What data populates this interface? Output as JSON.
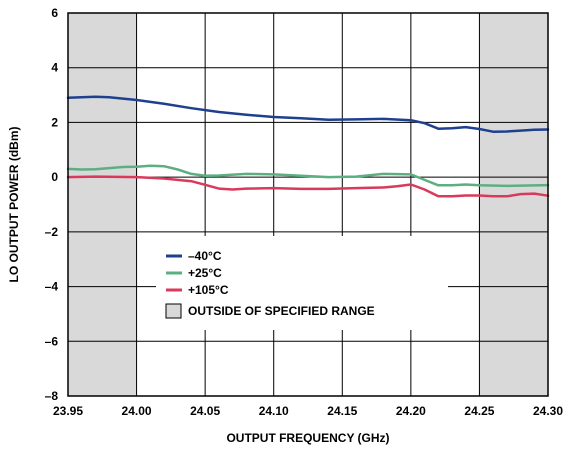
{
  "chart_data": {
    "type": "line",
    "xlabel": "OUTPUT FREQUENCY (GHz)",
    "ylabel": "LO OUTPUT POWER (dBm)",
    "xlim": [
      23.95,
      24.3
    ],
    "ylim": [
      -8,
      6
    ],
    "x_ticks": [
      "23.95",
      "24.00",
      "24.05",
      "24.10",
      "24.15",
      "24.20",
      "24.25",
      "24.30"
    ],
    "x_tick_values": [
      23.95,
      24.0,
      24.05,
      24.1,
      24.15,
      24.2,
      24.25,
      24.3
    ],
    "y_ticks": [
      "6",
      "4",
      "2",
      "0",
      "–2",
      "–4",
      "–6",
      "–8"
    ],
    "y_tick_values": [
      6,
      4,
      2,
      0,
      -2,
      -4,
      -6,
      -8
    ],
    "grid": true,
    "shaded_regions": [
      {
        "x_start": 23.95,
        "x_end": 24.0,
        "color": "#d9d9d9"
      },
      {
        "x_start": 24.25,
        "x_end": 24.3,
        "color": "#d9d9d9"
      }
    ],
    "series": [
      {
        "name": "–40°C",
        "color": "#1f3f8f",
        "x": [
          23.95,
          23.96,
          23.97,
          23.98,
          23.99,
          24.0,
          24.02,
          24.04,
          24.06,
          24.08,
          24.1,
          24.12,
          24.14,
          24.16,
          24.18,
          24.2,
          24.21,
          24.22,
          24.23,
          24.24,
          24.25,
          24.26,
          24.27,
          24.28,
          24.29,
          24.3
        ],
        "y": [
          2.9,
          2.92,
          2.94,
          2.92,
          2.87,
          2.82,
          2.68,
          2.52,
          2.38,
          2.28,
          2.2,
          2.15,
          2.1,
          2.11,
          2.13,
          2.08,
          1.97,
          1.77,
          1.79,
          1.83,
          1.76,
          1.66,
          1.67,
          1.7,
          1.73,
          1.74
        ]
      },
      {
        "name": "+25°C",
        "color": "#5daf82",
        "x": [
          23.95,
          23.96,
          23.97,
          23.98,
          23.99,
          24.0,
          24.01,
          24.02,
          24.03,
          24.04,
          24.05,
          24.06,
          24.08,
          24.1,
          24.12,
          24.14,
          24.16,
          24.18,
          24.2,
          24.21,
          24.22,
          24.23,
          24.24,
          24.25,
          24.27,
          24.3
        ],
        "y": [
          0.3,
          0.28,
          0.29,
          0.33,
          0.37,
          0.38,
          0.42,
          0.4,
          0.28,
          0.12,
          0.05,
          0.06,
          0.12,
          0.1,
          0.05,
          0.0,
          0.02,
          0.12,
          0.1,
          -0.1,
          -0.3,
          -0.3,
          -0.27,
          -0.3,
          -0.32,
          -0.29
        ]
      },
      {
        "name": "+105°C",
        "color": "#d93a5c",
        "x": [
          23.95,
          23.97,
          24.0,
          24.02,
          24.04,
          24.05,
          24.06,
          24.07,
          24.08,
          24.1,
          24.12,
          24.14,
          24.16,
          24.18,
          24.19,
          24.2,
          24.21,
          24.22,
          24.23,
          24.24,
          24.25,
          24.26,
          24.27,
          24.28,
          24.29,
          24.3
        ],
        "y": [
          0.0,
          0.02,
          0.0,
          -0.05,
          -0.15,
          -0.28,
          -0.42,
          -0.45,
          -0.42,
          -0.4,
          -0.43,
          -0.43,
          -0.4,
          -0.38,
          -0.33,
          -0.27,
          -0.45,
          -0.7,
          -0.7,
          -0.67,
          -0.67,
          -0.7,
          -0.7,
          -0.62,
          -0.6,
          -0.68
        ]
      }
    ],
    "legend": {
      "placement": "lower-left",
      "items": [
        {
          "label": "–40°C",
          "color": "#1f3f8f",
          "kind": "line"
        },
        {
          "label": "+25°C",
          "color": "#5daf82",
          "kind": "line"
        },
        {
          "label": "+105°C",
          "color": "#d93a5c",
          "kind": "line"
        },
        {
          "label": "OUTSIDE OF SPECIFIED RANGE",
          "color": "#d9d9d9",
          "kind": "box"
        }
      ]
    }
  }
}
